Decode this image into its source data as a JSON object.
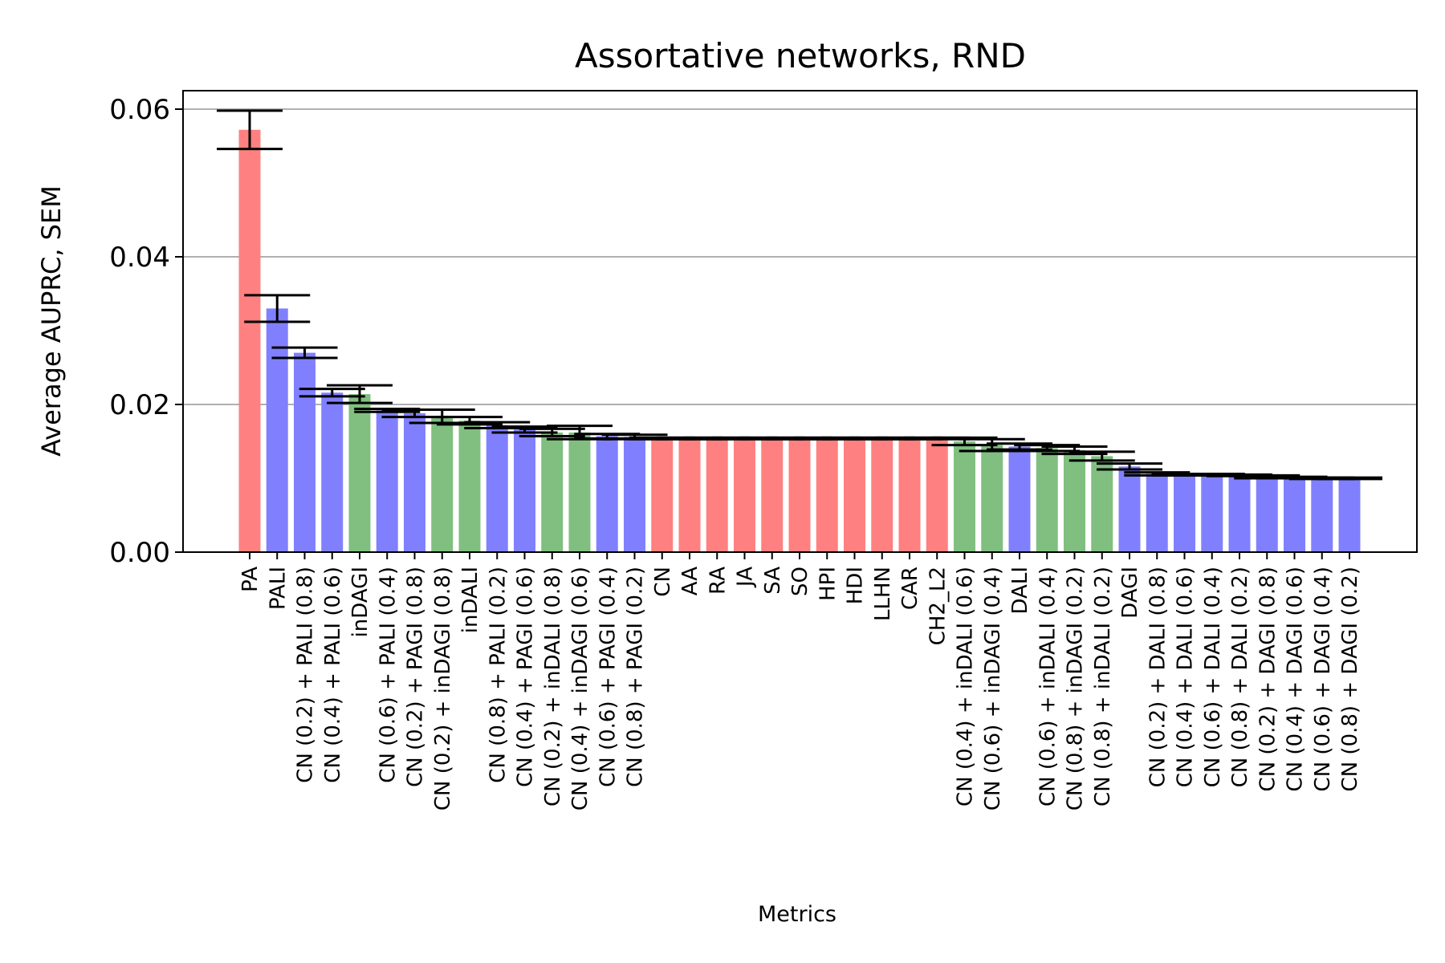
{
  "chart_data": {
    "type": "bar",
    "title": "Assortative networks, RND",
    "xlabel": "Metrics",
    "ylabel": "Average AUPRC, SEM",
    "ylim": [
      0,
      0.0625
    ],
    "yticks": [
      "0.00",
      "0.02",
      "0.04",
      "0.06"
    ],
    "ytick_values": [
      0,
      0.02,
      0.04,
      0.06
    ],
    "grid": "horizontal",
    "colors": {
      "red": "#ff8080",
      "blue": "#8080ff",
      "green": "#80bf80"
    },
    "categories": [
      "PA",
      "PALI",
      "CN (0.2) + PALI (0.8)",
      "CN (0.4) + PALI (0.6)",
      "inDAGI",
      "CN (0.6) + PALI (0.4)",
      "CN (0.2) + PAGI (0.8)",
      "CN (0.2) + inDAGI (0.8)",
      "inDALI",
      "CN (0.8) + PALI (0.2)",
      "CN (0.4) + PAGI (0.6)",
      "CN (0.2) + inDALI (0.8)",
      "CN (0.4) + inDAGI (0.6)",
      "CN (0.6) + PAGI (0.4)",
      "CN (0.8) + PAGI (0.2)",
      "CN",
      "AA",
      "RA",
      "JA",
      "SA",
      "SO",
      "HPI",
      "HDI",
      "LLHN",
      "CAR",
      "CH2_L2",
      "CN (0.4) + inDALI (0.6)",
      "CN (0.6) + inDAGI (0.4)",
      "DALI",
      "CN (0.6) + inDALI (0.4)",
      "CN (0.8) + inDAGI (0.2)",
      "CN (0.8) + inDALI (0.2)",
      "DAGI",
      "CN (0.2) + DALI (0.8)",
      "CN (0.4) + DALI (0.6)",
      "CN (0.6) + DALI (0.4)",
      "CN (0.8) + DALI (0.2)",
      "CN (0.2) + DAGI (0.8)",
      "CN (0.4) + DAGI (0.6)",
      "CN (0.6) + DAGI (0.4)",
      "CN (0.8) + DAGI (0.2)"
    ],
    "values": [
      0.0572,
      0.033,
      0.027,
      0.0216,
      0.0214,
      0.0192,
      0.0188,
      0.0184,
      0.0178,
      0.0172,
      0.0166,
      0.0162,
      0.0162,
      0.0157,
      0.0156,
      0.0154,
      0.0154,
      0.0154,
      0.0154,
      0.0154,
      0.0154,
      0.0154,
      0.0154,
      0.0154,
      0.0154,
      0.0154,
      0.015,
      0.0145,
      0.0143,
      0.0141,
      0.0138,
      0.013,
      0.0116,
      0.0106,
      0.0105,
      0.0105,
      0.0104,
      0.0102,
      0.0101,
      0.01,
      0.01
    ],
    "sem": [
      0.0026,
      0.0018,
      0.0007,
      0.0005,
      0.0012,
      0.0002,
      0.0005,
      0.0009,
      0.0005,
      0.0004,
      0.0004,
      0.0005,
      0.0009,
      0.0003,
      0.0003,
      0.0001,
      0.0001,
      0.0001,
      0.0001,
      0.0001,
      0.0001,
      0.0001,
      0.0001,
      0.0001,
      0.0001,
      0.0001,
      0.0005,
      0.0008,
      0.0004,
      0.0004,
      0.0005,
      0.0006,
      0.0004,
      0.0002,
      0.0001,
      0.0001,
      0.0001,
      0.0002,
      0.0001,
      0.0001,
      0.0001
    ],
    "bar_colors": [
      "red",
      "blue",
      "blue",
      "blue",
      "green",
      "blue",
      "blue",
      "green",
      "green",
      "blue",
      "blue",
      "green",
      "green",
      "blue",
      "blue",
      "red",
      "red",
      "red",
      "red",
      "red",
      "red",
      "red",
      "red",
      "red",
      "red",
      "red",
      "green",
      "green",
      "blue",
      "green",
      "green",
      "green",
      "blue",
      "blue",
      "blue",
      "blue",
      "blue",
      "blue",
      "blue",
      "blue",
      "blue"
    ]
  }
}
